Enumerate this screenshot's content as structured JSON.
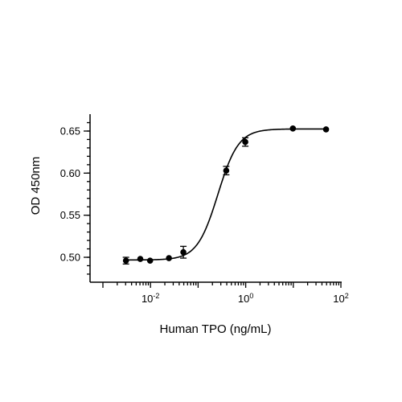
{
  "chart_data": {
    "type": "scatter",
    "title": "",
    "xlabel": "Human TPO (ng/mL)",
    "ylabel": "OD 450nm",
    "xscale": "log",
    "xlim": [
      0.001,
      100
    ],
    "ylim": [
      0.47,
      0.67
    ],
    "x_ticks": [
      {
        "value": 0.01,
        "base": "10",
        "exp": "-2"
      },
      {
        "value": 1,
        "base": "10",
        "exp": "0"
      },
      {
        "value": 100,
        "base": "10",
        "exp": "2"
      }
    ],
    "y_ticks": [
      {
        "value": 0.5,
        "label": "0.50"
      },
      {
        "value": 0.55,
        "label": "0.55"
      },
      {
        "value": 0.6,
        "label": "0.60"
      },
      {
        "value": 0.65,
        "label": "0.65"
      }
    ],
    "grid": false,
    "points": [
      {
        "x": 0.00305,
        "y": 0.496,
        "err": 0.004
      },
      {
        "x": 0.0061,
        "y": 0.498,
        "err": 0.0
      },
      {
        "x": 0.0098,
        "y": 0.496,
        "err": 0.0
      },
      {
        "x": 0.0244,
        "y": 0.499,
        "err": 0.0
      },
      {
        "x": 0.049,
        "y": 0.506,
        "err": 0.007
      },
      {
        "x": 0.39,
        "y": 0.603,
        "err": 0.005
      },
      {
        "x": 0.98,
        "y": 0.637,
        "err": 0.005
      },
      {
        "x": 9.8,
        "y": 0.653,
        "err": 0.0
      },
      {
        "x": 48.8,
        "y": 0.652,
        "err": 0.0
      }
    ],
    "fit": {
      "model": "4PL",
      "bottom": 0.4968,
      "top": 0.6525,
      "ec50": 0.26,
      "hill": 2.0
    }
  }
}
